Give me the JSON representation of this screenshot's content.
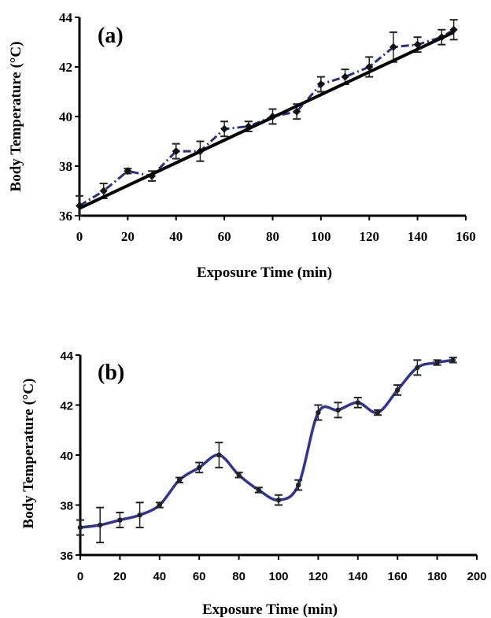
{
  "chart_data": [
    {
      "type": "line",
      "panel_label": "(a)",
      "xlabel": "Exposure Time (min)",
      "ylabel": "Body Temperature (°C)",
      "xlim": [
        0,
        160
      ],
      "ylim": [
        36,
        44
      ],
      "xticks": [
        0,
        20,
        40,
        60,
        80,
        100,
        120,
        140,
        160
      ],
      "yticks": [
        36,
        38,
        40,
        42,
        44
      ],
      "grid": false,
      "series": [
        {
          "style": "data",
          "color": "#2b2f8a",
          "x": [
            0,
            10,
            20,
            30,
            40,
            50,
            60,
            70,
            80,
            90,
            100,
            110,
            120,
            130,
            140,
            150,
            155
          ],
          "y": [
            36.4,
            37.0,
            37.8,
            37.6,
            38.6,
            38.6,
            39.5,
            39.6,
            40.0,
            40.2,
            41.3,
            41.6,
            42.0,
            42.8,
            42.9,
            43.2,
            43.5
          ],
          "err": [
            0.4,
            0.3,
            0.1,
            0.2,
            0.3,
            0.4,
            0.3,
            0.2,
            0.3,
            0.3,
            0.3,
            0.3,
            0.4,
            0.6,
            0.3,
            0.3,
            0.4
          ]
        },
        {
          "style": "fit",
          "color": "#000000",
          "x": [
            0,
            155
          ],
          "y": [
            36.3,
            43.4
          ]
        }
      ]
    },
    {
      "type": "line",
      "panel_label": "(b)",
      "xlabel": "Exposure Time (min)",
      "ylabel": "Body Temperature (°C)",
      "xlim": [
        0,
        200
      ],
      "ylim": [
        36,
        44
      ],
      "xticks": [
        0,
        20,
        40,
        60,
        80,
        100,
        120,
        140,
        160,
        180,
        200
      ],
      "yticks": [
        36,
        38,
        40,
        42,
        44
      ],
      "grid": false,
      "series": [
        {
          "style": "data",
          "color": "#2f3596",
          "x": [
            0,
            10,
            20,
            30,
            40,
            50,
            60,
            70,
            80,
            90,
            100,
            110,
            120,
            130,
            140,
            150,
            160,
            170,
            180,
            188
          ],
          "y": [
            37.1,
            37.2,
            37.4,
            37.6,
            38.0,
            39.0,
            39.5,
            40.0,
            39.2,
            38.6,
            38.2,
            38.8,
            41.7,
            41.8,
            42.1,
            41.7,
            42.6,
            43.5,
            43.7,
            43.8
          ],
          "err": [
            0.3,
            0.7,
            0.3,
            0.5,
            0.1,
            0.1,
            0.2,
            0.5,
            0.1,
            0.1,
            0.2,
            0.2,
            0.3,
            0.3,
            0.2,
            0.1,
            0.2,
            0.3,
            0.1,
            0.1
          ]
        }
      ]
    }
  ]
}
